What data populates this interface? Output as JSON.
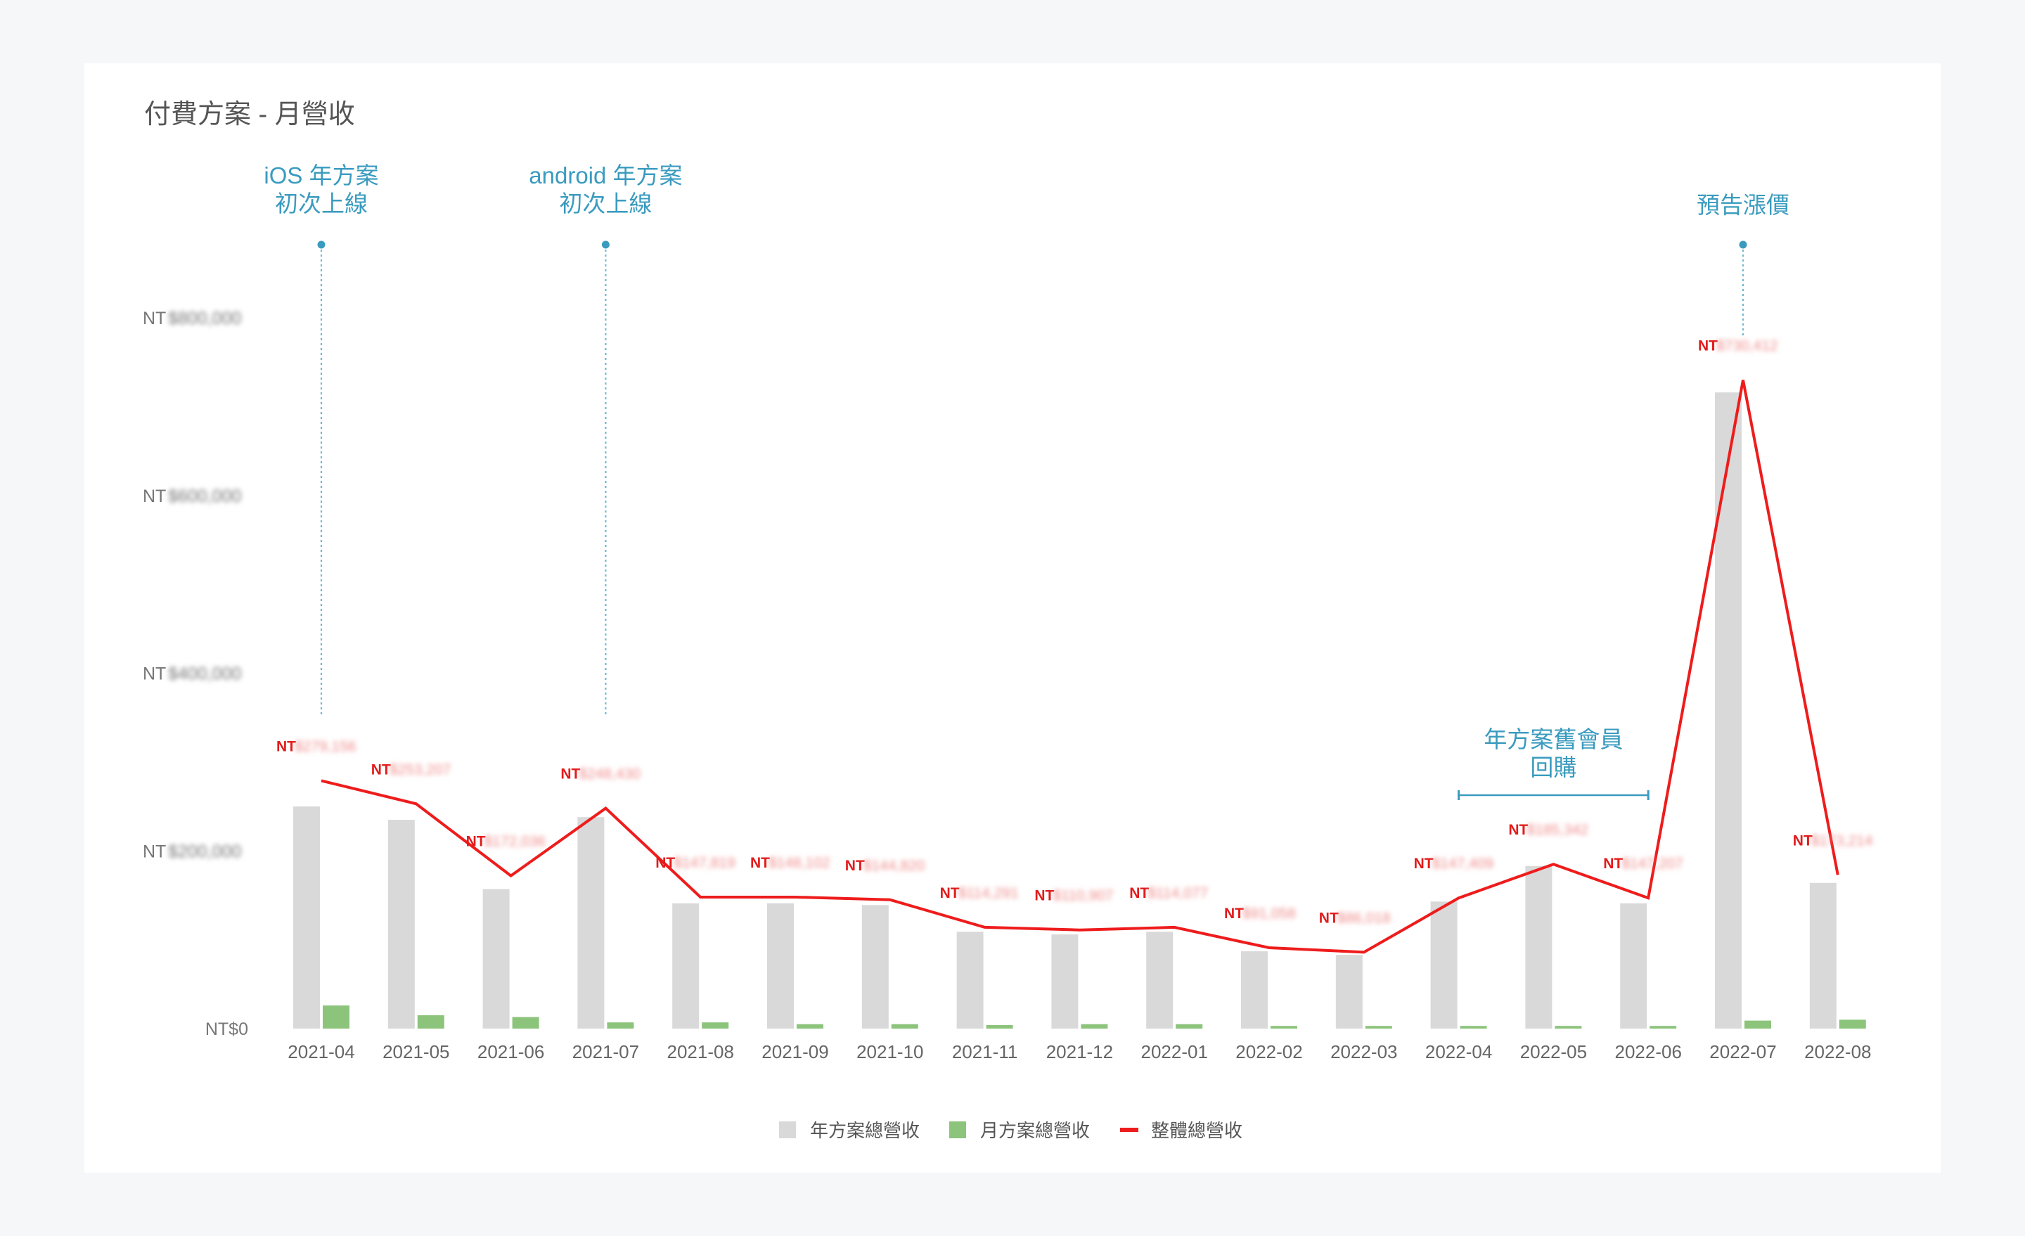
{
  "chart_data": {
    "type": "bar",
    "title": "付費方案 - 月營收",
    "categories": [
      "2021-04",
      "2021-05",
      "2021-06",
      "2021-07",
      "2021-08",
      "2021-09",
      "2021-10",
      "2021-11",
      "2021-12",
      "2022-01",
      "2022-02",
      "2022-03",
      "2022-04",
      "2022-05",
      "2022-06",
      "2022-07",
      "2022-08"
    ],
    "ylim": [
      0,
      800000
    ],
    "y_ticks": [
      {
        "value": 0,
        "prefix": "NT$0",
        "hidden": ""
      },
      {
        "value": 200000,
        "prefix": "NT",
        "hidden": "$200,000"
      },
      {
        "value": 400000,
        "prefix": "NT",
        "hidden": "$400,000"
      },
      {
        "value": 600000,
        "prefix": "NT",
        "hidden": "$600,000"
      },
      {
        "value": 800000,
        "prefix": "NT",
        "hidden": "$800,000"
      }
    ],
    "series": [
      {
        "name": "年方案總營收",
        "kind": "bar",
        "color": "#d9d9d9",
        "values": [
          250000,
          235000,
          157000,
          238000,
          141000,
          141000,
          139000,
          109000,
          106000,
          109000,
          87000,
          83000,
          143000,
          183000,
          141000,
          716000,
          164000
        ]
      },
      {
        "name": "月方案總營收",
        "kind": "bar",
        "color": "#8cc47c",
        "values": [
          26000,
          15000,
          13000,
          7000,
          7000,
          5000,
          5000,
          4000,
          5000,
          5000,
          3000,
          3000,
          3000,
          3000,
          3000,
          9000,
          10000
        ]
      },
      {
        "name": "整體總營收",
        "kind": "line",
        "color": "#ee1c1c",
        "values": [
          279000,
          253000,
          172000,
          248000,
          148000,
          148000,
          145000,
          114000,
          111000,
          114000,
          91000,
          86000,
          147000,
          185000,
          147000,
          730000,
          173000
        ]
      }
    ],
    "data_labels": [
      {
        "prefix": "NT",
        "hidden": "$279,156"
      },
      {
        "prefix": "NT",
        "hidden": "$253,207"
      },
      {
        "prefix": "NT",
        "hidden": "$172,036"
      },
      {
        "prefix": "NT",
        "hidden": "$248,430"
      },
      {
        "prefix": "NT",
        "hidden": "$147,819"
      },
      {
        "prefix": "NT",
        "hidden": "$148,102"
      },
      {
        "prefix": "NT",
        "hidden": "$144,820"
      },
      {
        "prefix": "NT",
        "hidden": "$114,291"
      },
      {
        "prefix": "NT",
        "hidden": "$110,907"
      },
      {
        "prefix": "NT",
        "hidden": "$114,077"
      },
      {
        "prefix": "NT",
        "hidden": "$91,058"
      },
      {
        "prefix": "NT",
        "hidden": "$86,018"
      },
      {
        "prefix": "NT",
        "hidden": "$147,409"
      },
      {
        "prefix": "NT",
        "hidden": "$185,342"
      },
      {
        "prefix": "NT",
        "hidden": "$147,207"
      },
      {
        "prefix": "NT",
        "hidden": "$730,412"
      },
      {
        "prefix": "NT",
        "hidden": "$173,214"
      }
    ],
    "annotations": [
      {
        "lines": [
          "iOS 年方案",
          "初次上線"
        ],
        "index": 0,
        "kind": "vline"
      },
      {
        "lines": [
          "android 年方案",
          "初次上線"
        ],
        "index": 3,
        "kind": "vline"
      },
      {
        "lines": [
          "預告漲價"
        ],
        "index": 15,
        "kind": "vline"
      },
      {
        "lines": [
          "年方案舊會員",
          "回購"
        ],
        "from_index": 12,
        "to_index": 14,
        "kind": "range"
      }
    ],
    "legend_position": "bottom-center",
    "grid": false
  }
}
